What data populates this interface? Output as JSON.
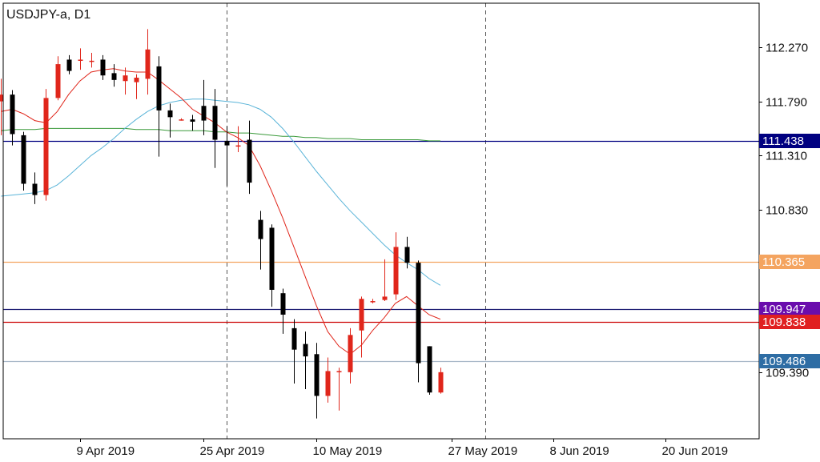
{
  "chart_data": {
    "type": "candlestick",
    "title": "USDJPY-a, D1",
    "y_ticks": [
      112.27,
      111.79,
      111.31,
      110.83,
      109.39
    ],
    "y_tick_labels": [
      "112.270",
      "111.790",
      "111.310",
      "110.830",
      "109.390"
    ],
    "x_tick_labels": [
      "9 Apr 2019",
      "25 Apr 2019",
      "10 May 2019",
      "27 May 2019",
      "8 Jun 2019",
      "20 Jun 2019"
    ],
    "x_tick_positions": [
      7,
      18,
      28,
      40,
      49,
      59
    ],
    "vertical_separators": [
      20,
      43
    ],
    "y_range": [
      108.8,
      112.66
    ],
    "x_range": [
      0.2,
      67.3
    ],
    "candles": [
      {
        "o": 111.79,
        "h": 111.99,
        "l": 111.49,
        "c": 111.85
      },
      {
        "o": 111.85,
        "h": 111.89,
        "l": 111.4,
        "c": 111.5
      },
      {
        "o": 111.49,
        "h": 111.52,
        "l": 111.0,
        "c": 111.06
      },
      {
        "o": 111.06,
        "h": 111.16,
        "l": 110.88,
        "c": 110.96
      },
      {
        "o": 110.96,
        "h": 111.9,
        "l": 110.91,
        "c": 111.82
      },
      {
        "o": 111.82,
        "h": 112.19,
        "l": 111.8,
        "c": 112.12
      },
      {
        "o": 112.16,
        "h": 112.2,
        "l": 112.03,
        "c": 112.06
      },
      {
        "o": 112.15,
        "h": 112.26,
        "l": 112.07,
        "c": 112.16
      },
      {
        "o": 112.14,
        "h": 112.22,
        "l": 112.09,
        "c": 112.15
      },
      {
        "o": 112.16,
        "h": 112.2,
        "l": 111.98,
        "c": 112.02
      },
      {
        "o": 112.04,
        "h": 112.12,
        "l": 111.92,
        "c": 111.98
      },
      {
        "o": 111.97,
        "h": 112.09,
        "l": 111.85,
        "c": 112.02
      },
      {
        "o": 111.96,
        "h": 112.03,
        "l": 111.81,
        "c": 112.0
      },
      {
        "o": 111.99,
        "h": 112.43,
        "l": 111.85,
        "c": 112.25
      },
      {
        "o": 112.1,
        "h": 112.19,
        "l": 111.3,
        "c": 111.71
      },
      {
        "o": 111.71,
        "h": 111.77,
        "l": 111.47,
        "c": 111.65
      },
      {
        "o": 111.63,
        "h": 111.64,
        "l": 111.62,
        "c": 111.63
      },
      {
        "o": 111.63,
        "h": 111.67,
        "l": 111.53,
        "c": 111.61
      },
      {
        "o": 111.75,
        "h": 111.98,
        "l": 111.49,
        "c": 111.62
      },
      {
        "o": 111.75,
        "h": 111.9,
        "l": 111.2,
        "c": 111.45
      },
      {
        "o": 111.44,
        "h": 111.57,
        "l": 111.04,
        "c": 111.4
      },
      {
        "o": 111.4,
        "h": 111.57,
        "l": 111.34,
        "c": 111.4
      },
      {
        "o": 111.45,
        "h": 111.62,
        "l": 110.97,
        "c": 111.07
      },
      {
        "o": 110.74,
        "h": 110.82,
        "l": 110.3,
        "c": 110.57
      },
      {
        "o": 110.67,
        "h": 110.7,
        "l": 109.97,
        "c": 110.12
      },
      {
        "o": 110.09,
        "h": 110.13,
        "l": 109.73,
        "c": 109.9
      },
      {
        "o": 109.78,
        "h": 109.86,
        "l": 109.29,
        "c": 109.59
      },
      {
        "o": 109.64,
        "h": 109.75,
        "l": 109.24,
        "c": 109.53
      },
      {
        "o": 109.55,
        "h": 109.65,
        "l": 108.98,
        "c": 109.18
      },
      {
        "o": 109.18,
        "h": 109.52,
        "l": 109.12,
        "c": 109.4
      },
      {
        "o": 109.4,
        "h": 109.43,
        "l": 109.05,
        "c": 109.4
      },
      {
        "o": 109.39,
        "h": 109.78,
        "l": 109.29,
        "c": 109.72
      },
      {
        "o": 109.76,
        "h": 110.06,
        "l": 109.52,
        "c": 110.04
      },
      {
        "o": 110.02,
        "h": 110.04,
        "l": 110.0,
        "c": 110.02
      },
      {
        "o": 110.03,
        "h": 110.39,
        "l": 110.02,
        "c": 110.06
      },
      {
        "o": 110.08,
        "h": 110.63,
        "l": 110.03,
        "c": 110.5
      },
      {
        "o": 110.5,
        "h": 110.59,
        "l": 110.31,
        "c": 110.36
      },
      {
        "o": 110.36,
        "h": 110.38,
        "l": 109.3,
        "c": 109.47
      },
      {
        "o": 109.62,
        "h": 109.62,
        "l": 109.19,
        "c": 109.21
      },
      {
        "o": 109.21,
        "h": 109.43,
        "l": 109.2,
        "c": 109.39
      }
    ],
    "hlines": [
      {
        "name": "level-111438",
        "value": 111.438,
        "label": "111.438",
        "color": "#000080",
        "badge": "#000080"
      },
      {
        "name": "level-110365",
        "value": 110.365,
        "label": "110.365",
        "color": "#f4a460",
        "badge": "#f4a460"
      },
      {
        "name": "level-109947",
        "value": 109.947,
        "label": "109.947",
        "color": "#191970",
        "badge": "#6a0dad"
      },
      {
        "name": "level-109838",
        "value": 109.838,
        "label": "109.838",
        "color": "#cc0000",
        "badge": "#e02020"
      },
      {
        "name": "level-109486",
        "value": 109.486,
        "label": "109.486",
        "color": "#a9b8c8",
        "badge": "#2e6da4"
      }
    ],
    "ma_fast": [
      111.7,
      111.72,
      111.68,
      111.62,
      111.6,
      111.7,
      111.85,
      111.97,
      112.05,
      112.07,
      112.08,
      112.06,
      112.05,
      112.05,
      111.98,
      111.9,
      111.82,
      111.72,
      111.66,
      111.6,
      111.52,
      111.47,
      111.4,
      111.22,
      111.0,
      110.76,
      110.5,
      110.24,
      109.98,
      109.75,
      109.62,
      109.55,
      109.63,
      109.76,
      109.87,
      110.0,
      110.06,
      109.98,
      109.9,
      109.86
    ],
    "ma_slow": [
      110.95,
      110.96,
      110.97,
      110.98,
      111.0,
      111.05,
      111.13,
      111.22,
      111.31,
      111.38,
      111.46,
      111.55,
      111.63,
      111.7,
      111.75,
      111.78,
      111.8,
      111.81,
      111.81,
      111.8,
      111.79,
      111.78,
      111.76,
      111.72,
      111.65,
      111.55,
      111.43,
      111.3,
      111.17,
      111.05,
      110.93,
      110.82,
      110.72,
      110.62,
      110.52,
      110.43,
      110.36,
      110.3,
      110.22,
      110.16
    ],
    "ma_long": [
      111.53,
      111.54,
      111.54,
      111.54,
      111.55,
      111.55,
      111.55,
      111.55,
      111.55,
      111.55,
      111.55,
      111.55,
      111.54,
      111.54,
      111.54,
      111.53,
      111.53,
      111.53,
      111.53,
      111.52,
      111.52,
      111.51,
      111.51,
      111.5,
      111.49,
      111.48,
      111.48,
      111.47,
      111.47,
      111.46,
      111.46,
      111.46,
      111.45,
      111.45,
      111.45,
      111.45,
      111.45,
      111.45,
      111.44,
      111.44
    ],
    "colors": {
      "bull": "#e0261b",
      "bear": "#000000",
      "ma_fast": "#e0261b",
      "ma_slow": "#5ab4d8",
      "ma_long": "#3a9a3a",
      "separator": "#555555",
      "frame": "#000000"
    }
  }
}
